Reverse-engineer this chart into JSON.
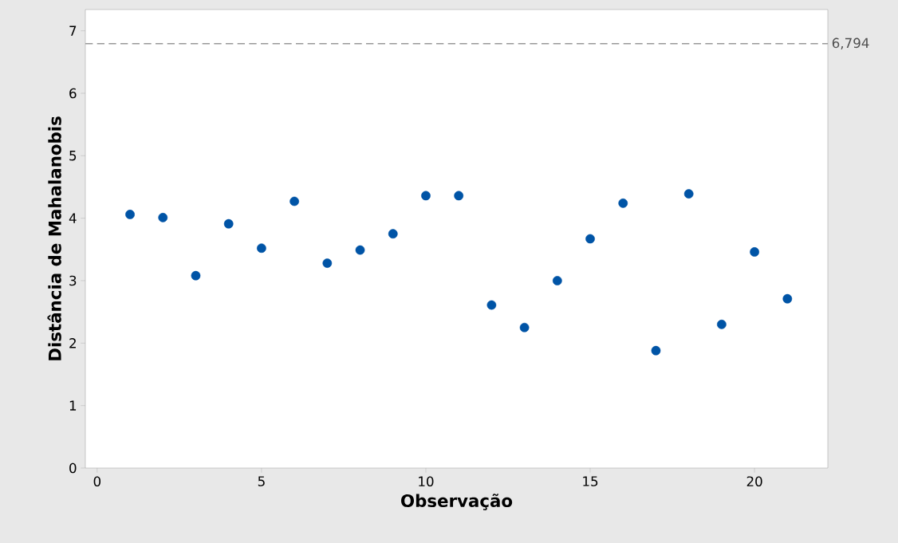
{
  "chart_data": {
    "type": "scatter",
    "xlabel": "Observação",
    "ylabel": "Distância de Mahalanobis",
    "x": [
      1,
      2,
      3,
      4,
      5,
      6,
      7,
      8,
      9,
      10,
      11,
      12,
      13,
      14,
      15,
      16,
      17,
      18,
      19,
      20,
      21
    ],
    "series": [
      {
        "color": "#0054a6",
        "values": [
          4.06,
          4.01,
          3.08,
          3.91,
          3.52,
          4.27,
          3.28,
          3.49,
          3.75,
          4.36,
          4.36,
          2.61,
          2.25,
          3.0,
          3.67,
          4.24,
          1.88,
          4.39,
          2.3,
          3.46,
          2.71
        ]
      }
    ],
    "xlim": [
      -0.36,
      22.23
    ],
    "ylim": [
      0,
      7.34
    ],
    "xticks": [
      0,
      5,
      10,
      15,
      20
    ],
    "yticks": [
      0,
      1,
      2,
      3,
      4,
      5,
      6,
      7
    ],
    "grid": false,
    "ref_lines": [
      {
        "axis": "y",
        "value": 6.794,
        "label": "6,794",
        "color": "#999999",
        "line_style": "dashed"
      }
    ]
  }
}
